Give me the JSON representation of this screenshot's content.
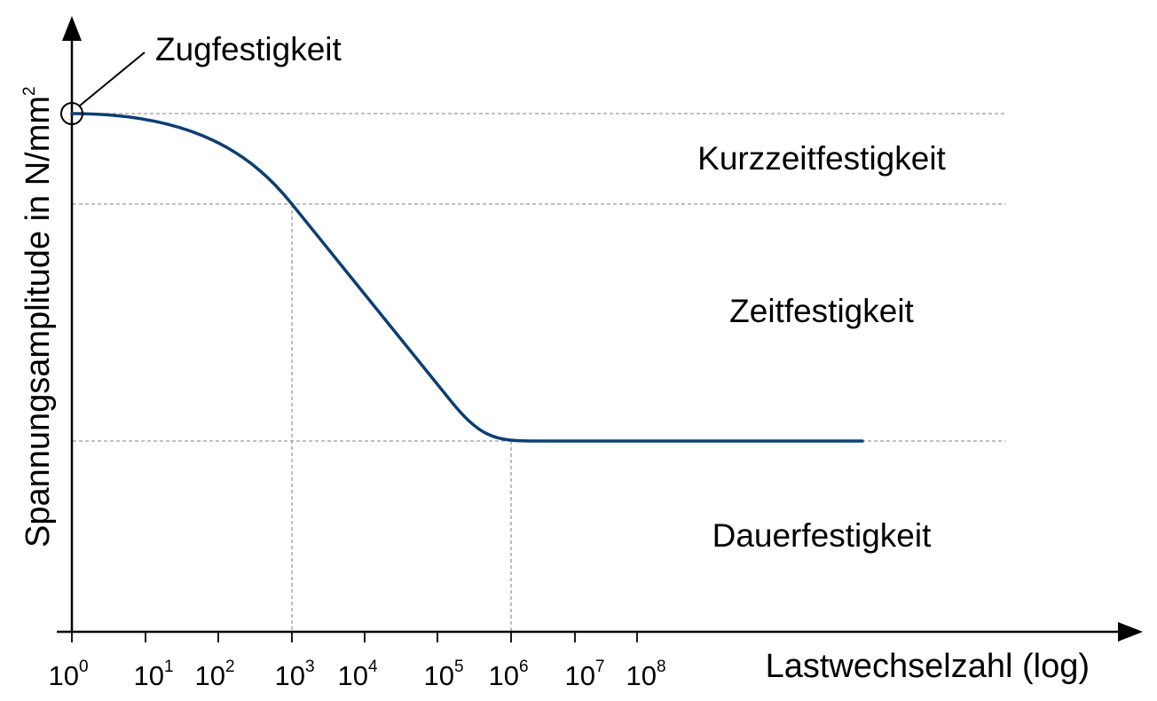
{
  "chart_data": {
    "type": "line",
    "title": "",
    "xlabel": "Lastwechselzahl (log)",
    "ylabel": {
      "main": "Spannungsamplitude in N/mm",
      "superscript": "2"
    },
    "x_scale": "log",
    "x_ticks": [
      {
        "base": "10",
        "exp": "0"
      },
      {
        "base": "10",
        "exp": "1"
      },
      {
        "base": "10",
        "exp": "2"
      },
      {
        "base": "10",
        "exp": "3"
      },
      {
        "base": "10",
        "exp": "4"
      },
      {
        "base": "10",
        "exp": "5"
      },
      {
        "base": "10",
        "exp": "6"
      },
      {
        "base": "10",
        "exp": "7"
      },
      {
        "base": "10",
        "exp": "8"
      }
    ],
    "series_color": "#0b3f73",
    "annotations": {
      "tensile_strength": "Zugfestigkeit"
    },
    "regions": [
      "Kurzzeitfestigkeit",
      "Zeitfestigkeit",
      "Dauerfestigkeit"
    ],
    "grid": false,
    "legend": "none"
  }
}
